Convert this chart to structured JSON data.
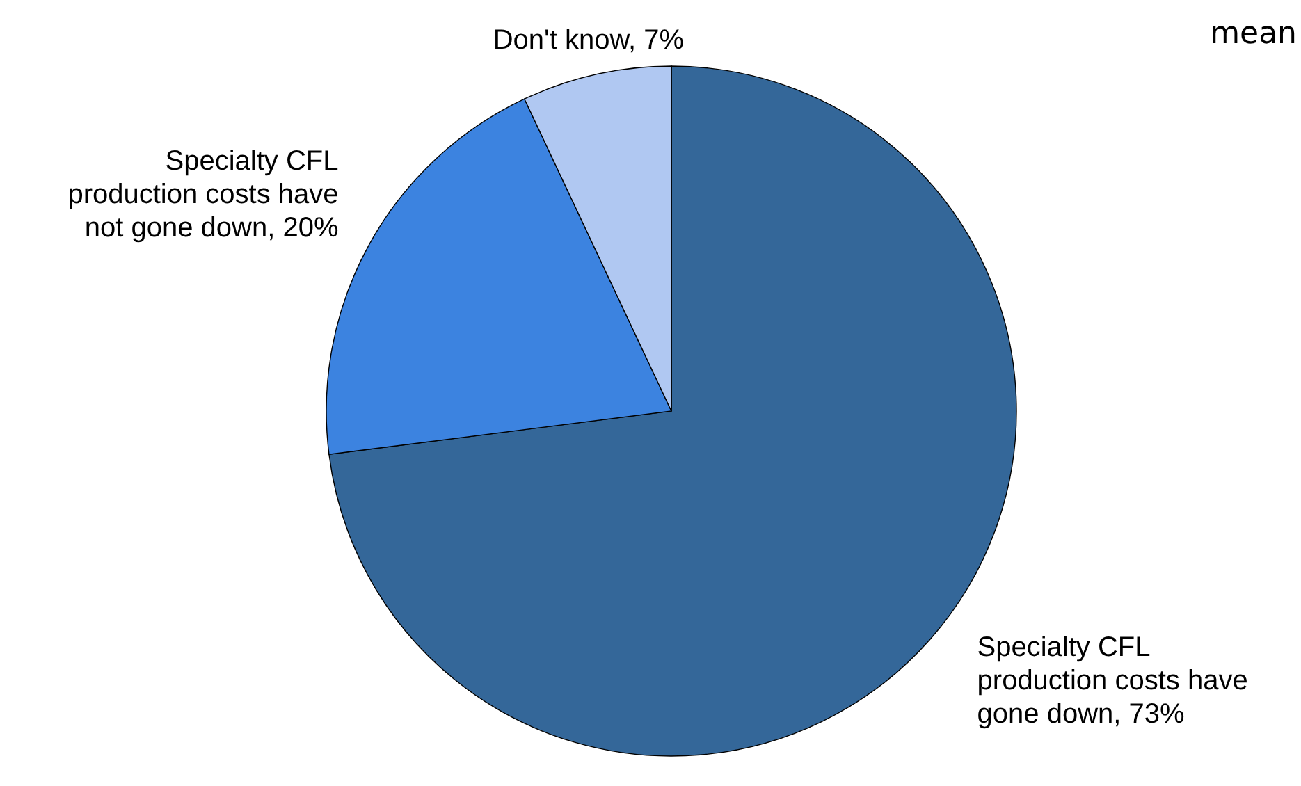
{
  "chart_data": {
    "type": "pie",
    "categories": [
      "Specialty CFL production costs have gone down",
      "Specialty CFL production costs have not gone down",
      "Don't know"
    ],
    "values": [
      73,
      20,
      7
    ],
    "value_labels": [
      "73%",
      "20%",
      "7%"
    ],
    "colors": [
      "#346799",
      "#3c83e0",
      "#b0c8f2"
    ],
    "annotations": [
      "mean"
    ],
    "legend": false
  }
}
